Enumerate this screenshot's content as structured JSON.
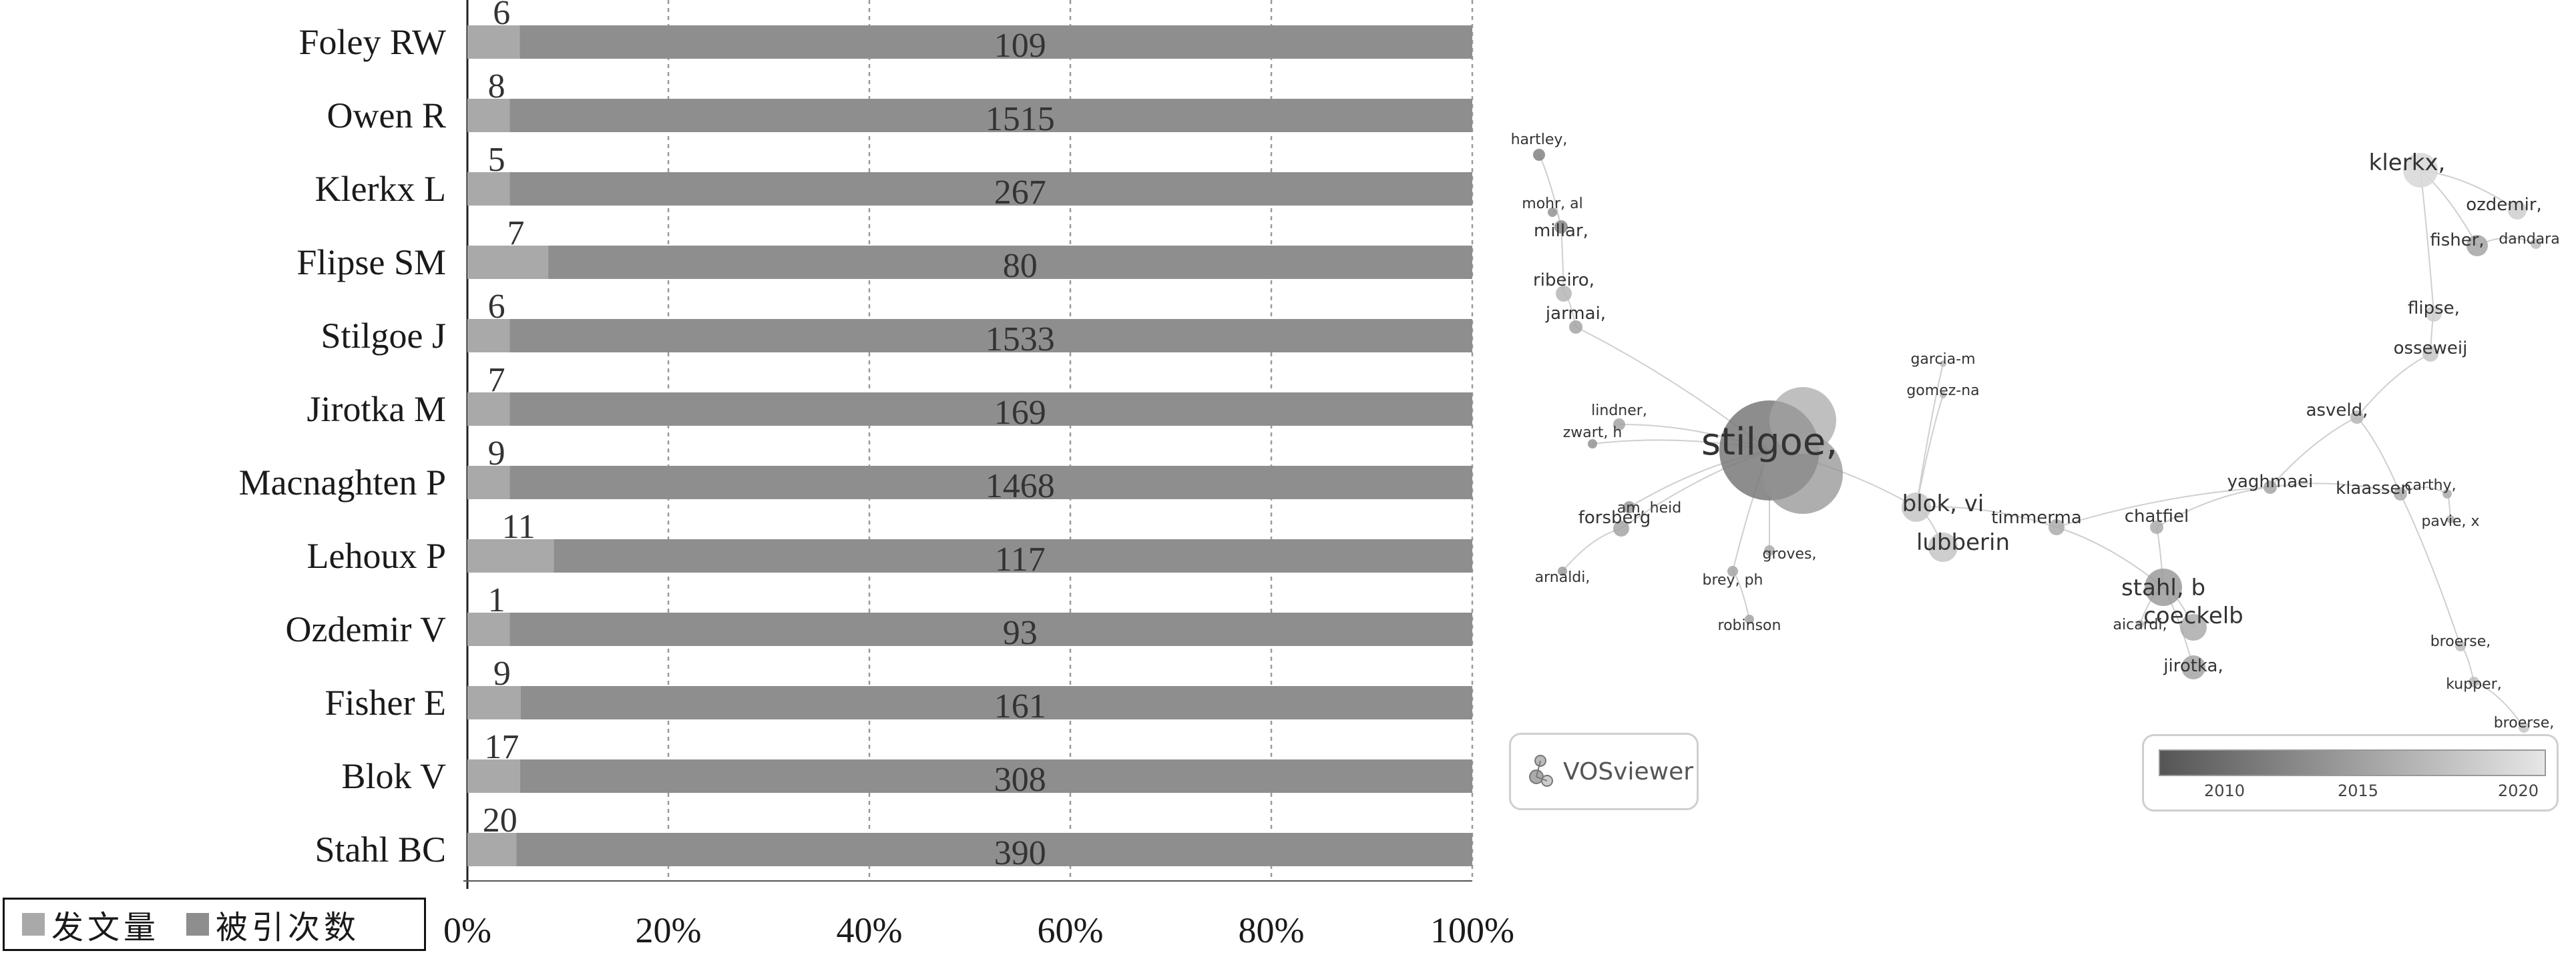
{
  "chart_data": [
    {
      "type": "bar",
      "orientation": "horizontal",
      "stacked": "percent",
      "categories": [
        "Foley RW",
        "Owen R",
        "Klerkx L",
        "Flipse SM",
        "Stilgoe J",
        "Jirotka M",
        "Macnaghten P",
        "Lehoux P",
        "Ozdemir V",
        "Fisher E",
        "Blok V",
        "Stahl BC"
      ],
      "series": [
        {
          "name": "发文量",
          "values": [
            6,
            8,
            5,
            7,
            6,
            7,
            9,
            11,
            1,
            9,
            17,
            20
          ]
        },
        {
          "name": "被引次数",
          "values": [
            109,
            1515,
            267,
            80,
            1533,
            169,
            1468,
            117,
            93,
            161,
            308,
            390
          ]
        }
      ],
      "x_ticks": [
        "0%",
        "20%",
        "40%",
        "60%",
        "80%",
        "100%"
      ],
      "xlim": [
        0,
        100
      ],
      "grid": "vertical dashed",
      "legend_position": "bottom-left",
      "colors": {
        "发文量": "#a9a9a9",
        "被引次数": "#8e8e8e"
      }
    },
    {
      "type": "network",
      "nodes": [
        {
          "label": "hartley,",
          "size": 9,
          "shade": 0.35
        },
        {
          "label": "mohr, al",
          "size": 7,
          "shade": 0.45
        },
        {
          "label": "millar,",
          "size": 10,
          "shade": 0.4
        },
        {
          "label": "ribeiro,",
          "size": 12,
          "shade": 0.65
        },
        {
          "label": "jarmai,",
          "size": 10,
          "shade": 0.55
        },
        {
          "label": "lindner,",
          "size": 9,
          "shade": 0.55
        },
        {
          "label": "zwart, h",
          "size": 7,
          "shade": 0.45
        },
        {
          "label": "stilgoe,",
          "size": 75,
          "shade": 0.3
        },
        {
          "label": "am, heid",
          "size": 9,
          "shade": 0.5
        },
        {
          "label": "forsberg",
          "size": 12,
          "shade": 0.55
        },
        {
          "label": "arnaldi,",
          "size": 7,
          "shade": 0.5
        },
        {
          "label": "brey, ph",
          "size": 8,
          "shade": 0.55
        },
        {
          "label": "groves,",
          "size": 8,
          "shade": 0.6
        },
        {
          "label": "robinson",
          "size": 7,
          "shade": 0.55
        },
        {
          "label": "garcia-m",
          "size": 5,
          "shade": 0.7
        },
        {
          "label": "gomez-na",
          "size": 5,
          "shade": 0.7
        },
        {
          "label": "blok, vi",
          "size": 22,
          "shade": 0.75
        },
        {
          "label": "lubberin",
          "size": 22,
          "shade": 0.75
        },
        {
          "label": "timmerma",
          "size": 12,
          "shade": 0.6
        },
        {
          "label": "chatfiel",
          "size": 10,
          "shade": 0.6
        },
        {
          "label": "stahl, b",
          "size": 28,
          "shade": 0.5
        },
        {
          "label": "aicardi,",
          "size": 6,
          "shade": 0.65
        },
        {
          "label": "coeckelb",
          "size": 20,
          "shade": 0.6
        },
        {
          "label": "jirotka,",
          "size": 18,
          "shade": 0.55
        },
        {
          "label": "yaghmaei",
          "size": 10,
          "shade": 0.55
        },
        {
          "label": "asveld,",
          "size": 10,
          "shade": 0.65
        },
        {
          "label": "klaassen",
          "size": 10,
          "shade": 0.6
        },
        {
          "label": "carthy,",
          "size": 7,
          "shade": 0.6
        },
        {
          "label": "pavie, x",
          "size": 6,
          "shade": 0.6
        },
        {
          "label": "osseweij",
          "size": 12,
          "shade": 0.75
        },
        {
          "label": "flipse,",
          "size": 12,
          "shade": 0.8
        },
        {
          "label": "klerkx,",
          "size": 26,
          "shade": 0.85
        },
        {
          "label": "fisher,",
          "size": 16,
          "shade": 0.55
        },
        {
          "label": "ozdemir,",
          "size": 14,
          "shade": 0.8
        },
        {
          "label": "dandara",
          "size": 8,
          "shade": 0.7
        },
        {
          "label": "broerse,",
          "size": 8,
          "shade": 0.7
        },
        {
          "label": "kupper,",
          "size": 8,
          "shade": 0.7
        },
        {
          "label": "broerse,",
          "size": 8,
          "shade": 0.75
        }
      ],
      "colorbar": {
        "ticks": [
          "2010",
          "2015",
          "2020"
        ],
        "from_color": "#555555",
        "to_color": "#e6e6e6"
      },
      "logo_text": "VOSviewer"
    }
  ],
  "legend": {
    "items": [
      {
        "label": "发文量",
        "color": "#a9a9a9"
      },
      {
        "label": "被引次数",
        "color": "#8e8e8e"
      }
    ]
  }
}
